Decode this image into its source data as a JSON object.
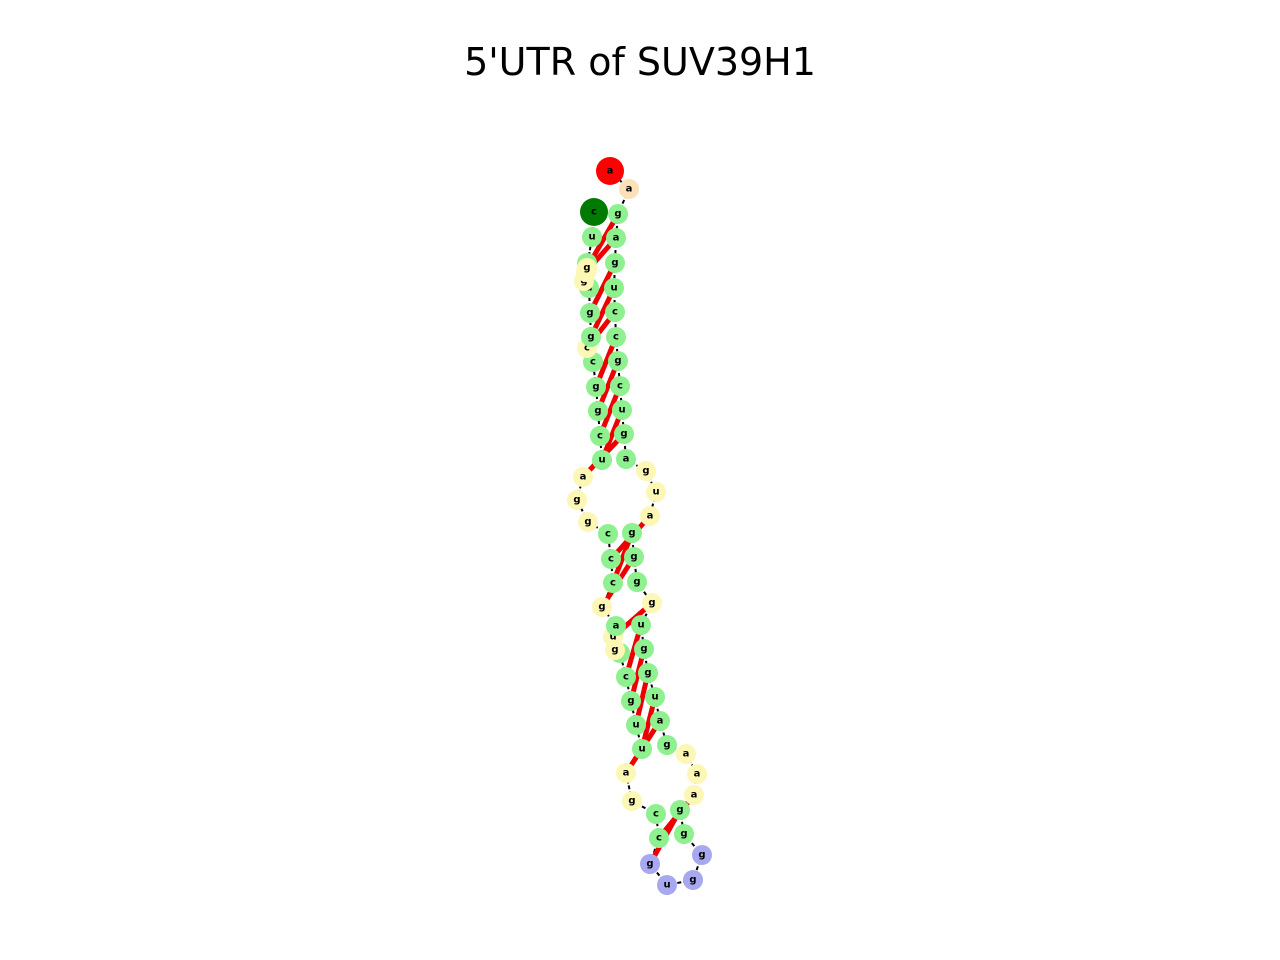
{
  "title": "5'UTR of SUV39H1",
  "colors": {
    "stem": "#8ff08f",
    "loop": "#fdf7b5",
    "hairpin": "#a8a8f0",
    "start": "#ff0000",
    "end": "#007a00",
    "dangling": "#fce0b8",
    "backbone": "#000000",
    "pair": "#ee0000"
  },
  "structure": {
    "length": 69,
    "nucleotides": [
      {
        "base": "a",
        "kind": "start"
      },
      {
        "base": "a",
        "kind": "dangling"
      },
      {
        "base": "g",
        "kind": "stem"
      },
      {
        "base": "a",
        "kind": "stem"
      },
      {
        "base": "g",
        "kind": "stem"
      },
      {
        "base": "u",
        "kind": "stem"
      },
      {
        "base": "c",
        "kind": "stem"
      },
      {
        "base": "c",
        "kind": "stem"
      },
      {
        "base": "g",
        "kind": "stem"
      },
      {
        "base": "c",
        "kind": "stem"
      },
      {
        "base": "u",
        "kind": "stem"
      },
      {
        "base": "g",
        "kind": "stem"
      },
      {
        "base": "a",
        "kind": "stem"
      },
      {
        "base": "g",
        "kind": "loop"
      },
      {
        "base": "u",
        "kind": "loop"
      },
      {
        "base": "a",
        "kind": "loop"
      },
      {
        "base": "g",
        "kind": "stem"
      },
      {
        "base": "g",
        "kind": "stem"
      },
      {
        "base": "g",
        "kind": "stem"
      },
      {
        "base": "g",
        "kind": "loop"
      },
      {
        "base": "u",
        "kind": "stem"
      },
      {
        "base": "g",
        "kind": "stem"
      },
      {
        "base": "g",
        "kind": "stem"
      },
      {
        "base": "u",
        "kind": "stem"
      },
      {
        "base": "a",
        "kind": "stem"
      },
      {
        "base": "g",
        "kind": "stem"
      },
      {
        "base": "a",
        "kind": "loop"
      },
      {
        "base": "a",
        "kind": "loop"
      },
      {
        "base": "a",
        "kind": "loop"
      },
      {
        "base": "g",
        "kind": "stem"
      },
      {
        "base": "g",
        "kind": "stem"
      },
      {
        "base": "g",
        "kind": "hairpin"
      },
      {
        "base": "g",
        "kind": "hairpin"
      },
      {
        "base": "u",
        "kind": "hairpin"
      },
      {
        "base": "g",
        "kind": "hairpin"
      },
      {
        "base": "c",
        "kind": "stem"
      },
      {
        "base": "c",
        "kind": "stem"
      },
      {
        "base": "g",
        "kind": "loop"
      },
      {
        "base": "a",
        "kind": "loop"
      },
      {
        "base": "u",
        "kind": "stem"
      },
      {
        "base": "u",
        "kind": "stem"
      },
      {
        "base": "g",
        "kind": "stem"
      },
      {
        "base": "c",
        "kind": "stem"
      },
      {
        "base": "u",
        "kind": "stem"
      },
      {
        "base": "g",
        "kind": "loop"
      },
      {
        "base": "u",
        "kind": "loop"
      },
      {
        "base": "a",
        "kind": "stem"
      },
      {
        "base": "g",
        "kind": "loop"
      },
      {
        "base": "c",
        "kind": "stem"
      },
      {
        "base": "c",
        "kind": "stem"
      },
      {
        "base": "c",
        "kind": "stem"
      },
      {
        "base": "g",
        "kind": "loop"
      },
      {
        "base": "g",
        "kind": "loop"
      },
      {
        "base": "a",
        "kind": "loop"
      },
      {
        "base": "u",
        "kind": "stem"
      },
      {
        "base": "c",
        "kind": "stem"
      },
      {
        "base": "g",
        "kind": "stem"
      },
      {
        "base": "g",
        "kind": "stem"
      },
      {
        "base": "c",
        "kind": "stem"
      },
      {
        "base": "c",
        "kind": "loop"
      },
      {
        "base": "g",
        "kind": "stem"
      },
      {
        "base": "g",
        "kind": "stem"
      },
      {
        "base": "a",
        "kind": "stem"
      },
      {
        "base": "g",
        "kind": "loop"
      },
      {
        "base": "c",
        "kind": "loop"
      },
      {
        "base": "c",
        "kind": "stem"
      },
      {
        "base": "g",
        "kind": "loop"
      },
      {
        "base": "u",
        "kind": "stem"
      },
      {
        "base": "c",
        "kind": "end"
      }
    ],
    "pairs": [
      [
        3,
        67
      ],
      [
        4,
        65
      ],
      [
        5,
        62
      ],
      [
        6,
        61
      ],
      [
        7,
        60
      ],
      [
        8,
        58
      ],
      [
        9,
        57
      ],
      [
        10,
        56
      ],
      [
        11,
        55
      ],
      [
        12,
        54
      ],
      [
        16,
        50
      ],
      [
        17,
        49
      ],
      [
        18,
        48
      ],
      [
        20,
        46
      ],
      [
        21,
        43
      ],
      [
        22,
        42
      ],
      [
        23,
        41
      ],
      [
        24,
        40
      ],
      [
        25,
        39
      ],
      [
        29,
        36
      ],
      [
        30,
        35
      ]
    ]
  }
}
